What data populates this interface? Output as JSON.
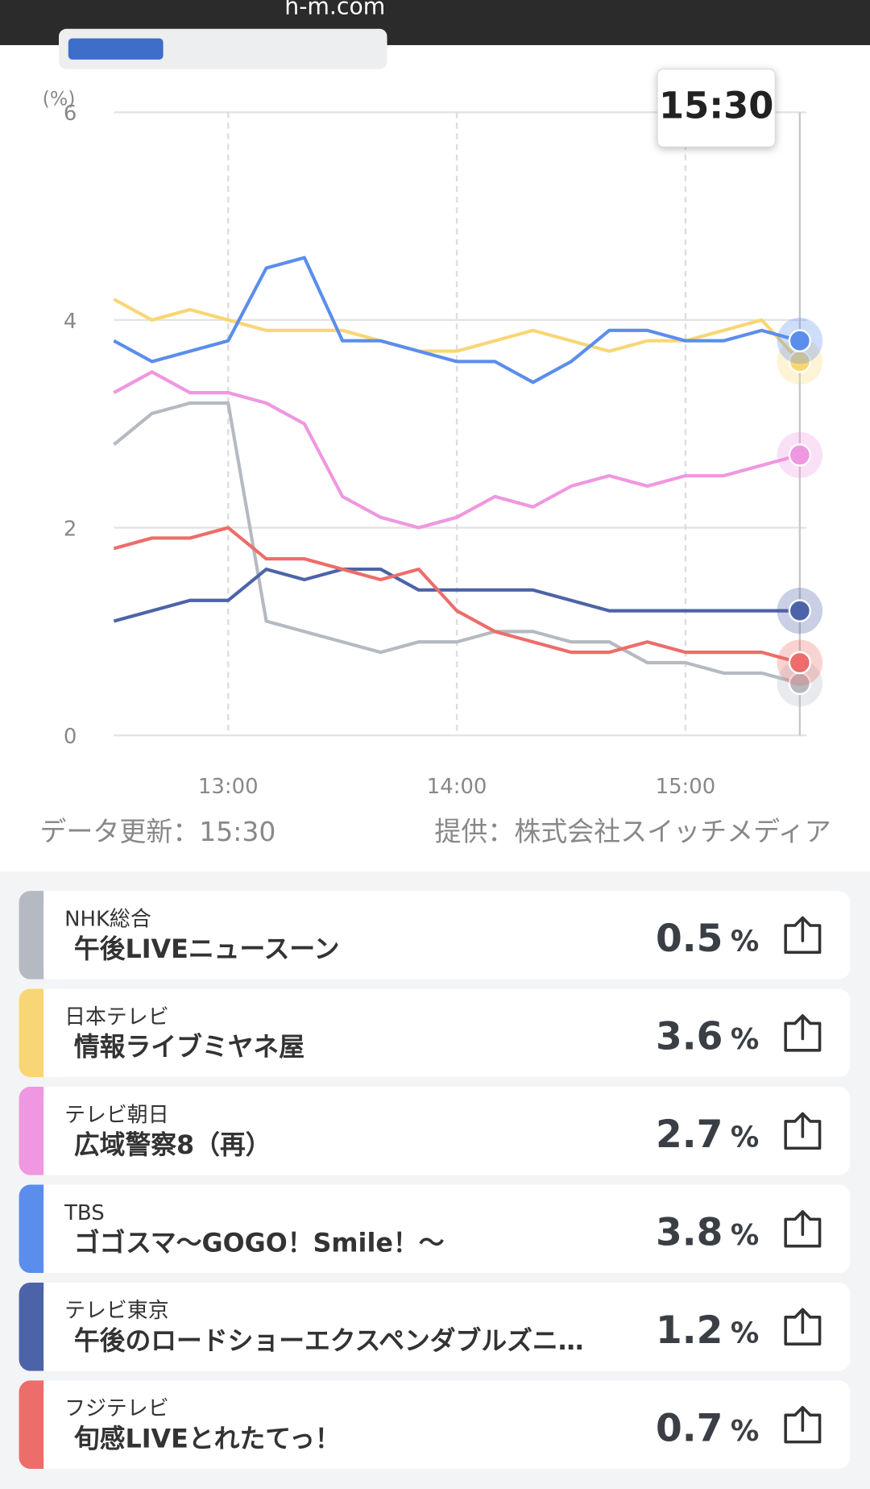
{
  "header": {
    "url": "h-m.com"
  },
  "chart_data": {
    "type": "line",
    "y_unit_label": "(%)",
    "tooltip": "15:30",
    "x": [
      "12:30",
      "12:40",
      "12:50",
      "13:00",
      "13:10",
      "13:20",
      "13:30",
      "13:40",
      "13:50",
      "14:00",
      "14:10",
      "14:20",
      "14:30",
      "14:40",
      "14:50",
      "15:00",
      "15:10",
      "15:20",
      "15:30"
    ],
    "xlim": [
      "12:30",
      "15:30"
    ],
    "xticks": [
      "13:00",
      "14:00",
      "15:00"
    ],
    "ylim": [
      0,
      6
    ],
    "yticks": [
      0,
      2,
      4,
      6
    ],
    "grid": true,
    "series": [
      {
        "name": "NHK総合",
        "color": "#b5bac2",
        "values": [
          2.8,
          3.1,
          3.2,
          3.2,
          1.1,
          1.0,
          0.9,
          0.8,
          0.9,
          0.9,
          1.0,
          1.0,
          0.9,
          0.9,
          0.7,
          0.7,
          0.6,
          0.6,
          0.5
        ]
      },
      {
        "name": "日本テレビ",
        "color": "#f9d675",
        "values": [
          4.2,
          4.0,
          4.1,
          4.0,
          3.9,
          3.9,
          3.9,
          3.8,
          3.7,
          3.7,
          3.8,
          3.9,
          3.8,
          3.7,
          3.8,
          3.8,
          3.9,
          4.0,
          3.6
        ]
      },
      {
        "name": "テレビ朝日",
        "color": "#ef97e0",
        "values": [
          3.3,
          3.5,
          3.3,
          3.3,
          3.2,
          3.0,
          2.3,
          2.1,
          2.0,
          2.1,
          2.3,
          2.2,
          2.4,
          2.5,
          2.4,
          2.5,
          2.5,
          2.6,
          2.7
        ]
      },
      {
        "name": "TBS",
        "color": "#5b8ded",
        "values": [
          3.8,
          3.6,
          3.7,
          3.8,
          4.5,
          4.6,
          3.8,
          3.8,
          3.7,
          3.6,
          3.6,
          3.4,
          3.6,
          3.9,
          3.9,
          3.8,
          3.8,
          3.9,
          3.8
        ]
      },
      {
        "name": "テレビ東京",
        "color": "#4d63a8",
        "values": [
          1.1,
          1.2,
          1.3,
          1.3,
          1.6,
          1.5,
          1.6,
          1.6,
          1.4,
          1.4,
          1.4,
          1.4,
          1.3,
          1.2,
          1.2,
          1.2,
          1.2,
          1.2,
          1.2
        ]
      },
      {
        "name": "フジテレビ",
        "color": "#ec6d6a",
        "values": [
          1.8,
          1.9,
          1.9,
          2.0,
          1.7,
          1.7,
          1.6,
          1.5,
          1.6,
          1.2,
          1.0,
          0.9,
          0.8,
          0.8,
          0.9,
          0.8,
          0.8,
          0.8,
          0.7
        ]
      }
    ]
  },
  "footer": {
    "updated": "データ更新：15:30",
    "source": "提供：株式会社スイッチメディア"
  },
  "list": {
    "unit": "%",
    "items": [
      {
        "program": "午後LIVEニュースーン",
        "rating": 0.5
      },
      {
        "program": "情報ライブミヤネ屋",
        "rating": 3.6
      },
      {
        "program": "広域警察8（再）",
        "rating": 2.7
      },
      {
        "program": "ゴゴスマ〜GOGO！Smile！〜",
        "rating": 3.8
      },
      {
        "program": "午後のロードショーエクスペンダブルズニ…",
        "rating": 1.2
      },
      {
        "program": "旬感LIVEとれたてっ！",
        "rating": 0.7
      }
    ]
  }
}
